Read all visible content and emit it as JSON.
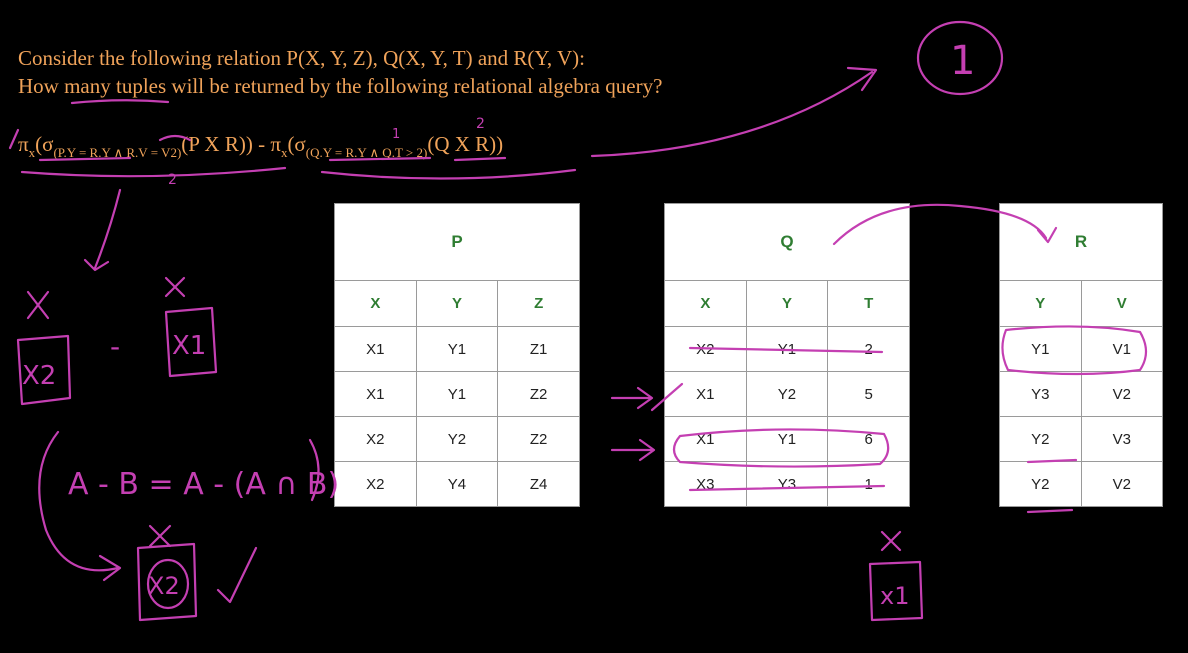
{
  "question": {
    "line1": "Consider the following relation P(X, Y, Z), Q(X, Y, T) and R(Y, V):",
    "line2": "How many tuples will be returned by the following relational algebra query?"
  },
  "query": {
    "pi1": "π",
    "x1": "x",
    "open1": "(σ",
    "cond1": "(P.Y = R.Y ∧ R.V = V2)",
    "rel1": "(P X R)) - π",
    "x2": "x",
    "open2": "(σ",
    "cond2": "(Q.Y = R.Y ∧ Q.T > 2)",
    "rel2": "(Q X R))"
  },
  "tables": {
    "P": {
      "title": "P",
      "columns": [
        "X",
        "Y",
        "Z"
      ],
      "rows": [
        [
          "X1",
          "Y1",
          "Z1"
        ],
        [
          "X1",
          "Y1",
          "Z2"
        ],
        [
          "X2",
          "Y2",
          "Z2"
        ],
        [
          "X2",
          "Y4",
          "Z4"
        ]
      ]
    },
    "Q": {
      "title": "Q",
      "columns": [
        "X",
        "Y",
        "T"
      ],
      "rows": [
        [
          "X2",
          "Y1",
          "2"
        ],
        [
          "X1",
          "Y2",
          "5"
        ],
        [
          "X1",
          "Y1",
          "6"
        ],
        [
          "X3",
          "Y3",
          "1"
        ]
      ]
    },
    "R": {
      "title": "R",
      "columns": [
        "Y",
        "V"
      ],
      "rows": [
        [
          "Y1",
          "V1"
        ],
        [
          "Y3",
          "V2"
        ],
        [
          "Y2",
          "V3"
        ],
        [
          "Y2",
          "V2"
        ]
      ]
    }
  },
  "annotations": {
    "circled_answer": "1",
    "left_x2": "X2",
    "left_minus": "-",
    "left_x1": "X1",
    "identity": "A - B = A - (A ∩ B)",
    "result": "X2",
    "right_result": "x1",
    "mark_x": "X",
    "num1": "1",
    "num2": "2",
    "check": "✓"
  },
  "colors": {
    "question": "#f0a35a",
    "ink": "#c43fb2",
    "header": "#2f7d32"
  }
}
